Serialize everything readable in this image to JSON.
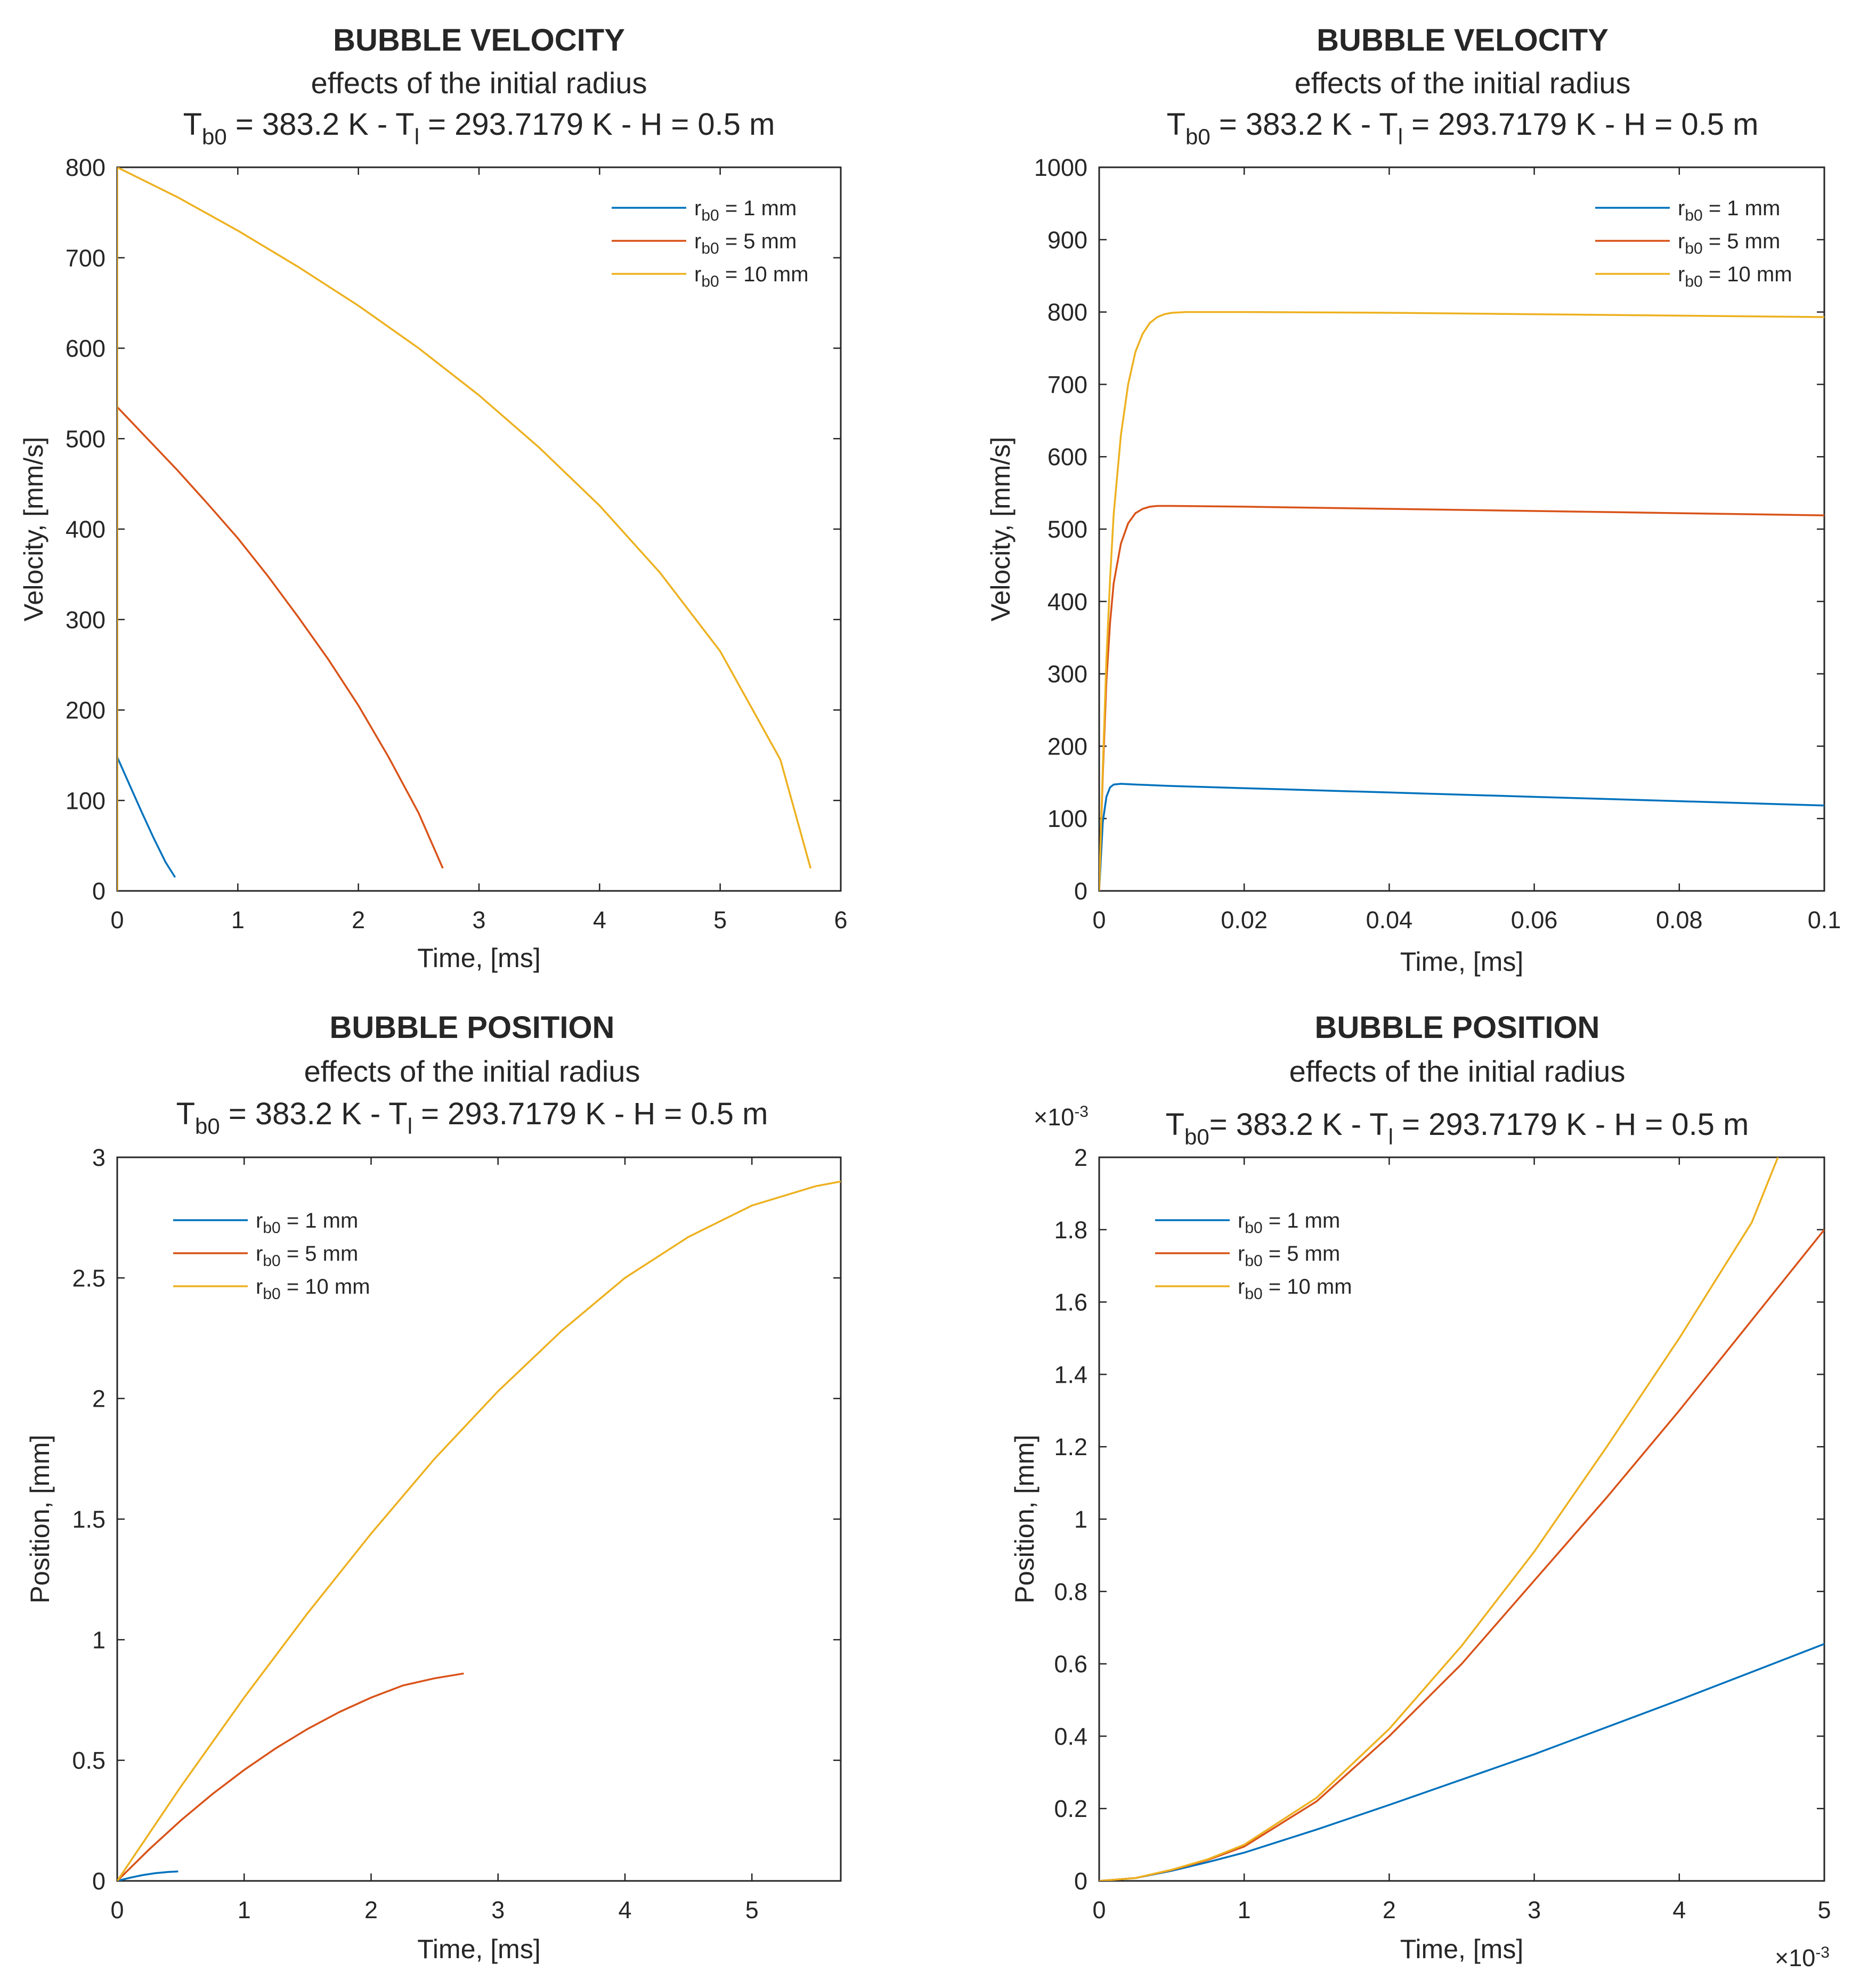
{
  "colors": {
    "series": [
      "#0072BD",
      "#D95319",
      "#EDB120"
    ],
    "axes": "#262626",
    "background": "#ffffff"
  },
  "chart_data": [
    {
      "type": "line",
      "title": "BUBBLE VELOCITY",
      "subtitle": "effects of the initial radius",
      "params": {
        "Tb": "T",
        "Tb_sub": "b0",
        "Tb_value": " = 383.2 K - T",
        "Tl_sub": "l",
        "rest": " = 293.7179 K - H = 0.5 m"
      },
      "xlabel": "Time, [ms]",
      "ylabel": "Velocity, [mm/s]",
      "xlim": [
        0,
        6
      ],
      "ylim": [
        0,
        800
      ],
      "xticks": [
        0,
        1,
        2,
        3,
        4,
        5,
        6
      ],
      "yticks": [
        0,
        100,
        200,
        300,
        400,
        500,
        600,
        700,
        800
      ],
      "xtick_labels": [
        "0",
        "1",
        "2",
        "3",
        "4",
        "5",
        "6"
      ],
      "ytick_labels": [
        "0",
        "100",
        "200",
        "300",
        "400",
        "500",
        "600",
        "700",
        "800"
      ],
      "legend_position": "top-right",
      "series": [
        {
          "name": "r_b0 = 1 mm",
          "x": [
            0,
            0,
            0.1,
            0.2,
            0.3,
            0.4,
            0.48
          ],
          "y": [
            0,
            148,
            118,
            88,
            59,
            32,
            15
          ]
        },
        {
          "name": "r_b0 = 5 mm",
          "x": [
            0,
            0,
            0.25,
            0.5,
            0.75,
            1.0,
            1.25,
            1.5,
            1.75,
            2.0,
            2.25,
            2.5,
            2.7
          ],
          "y": [
            0,
            535,
            500,
            465,
            428,
            390,
            348,
            303,
            256,
            205,
            148,
            86,
            25
          ]
        },
        {
          "name": "r_b0 = 10 mm",
          "x": [
            0,
            0,
            0.5,
            1.0,
            1.5,
            2.0,
            2.5,
            3.0,
            3.5,
            4.0,
            4.5,
            5.0,
            5.5,
            5.75
          ],
          "y": [
            0,
            800,
            767,
            730,
            690,
            647,
            600,
            548,
            490,
            426,
            352,
            265,
            145,
            25
          ]
        }
      ]
    },
    {
      "type": "line",
      "title": "BUBBLE VELOCITY",
      "subtitle": "effects of the initial radius",
      "params": {
        "Tb": "T",
        "Tb_sub": "b0",
        "Tb_value": " = 383.2 K - T",
        "Tl_sub": "l",
        "rest": " = 293.7179 K - H = 0.5 m"
      },
      "xlabel": "Time, [ms]",
      "ylabel": "Velocity, [mm/s]",
      "xlim": [
        0,
        0.1
      ],
      "ylim": [
        0,
        1000
      ],
      "xticks": [
        0,
        0.02,
        0.04,
        0.06,
        0.08,
        0.1
      ],
      "yticks": [
        0,
        100,
        200,
        300,
        400,
        500,
        600,
        700,
        800,
        900,
        1000
      ],
      "xtick_labels": [
        "0",
        "0.02",
        "0.04",
        "0.06",
        "0.08",
        "0.1"
      ],
      "ytick_labels": [
        "0",
        "100",
        "200",
        "300",
        "400",
        "500",
        "600",
        "700",
        "800",
        "900",
        "1000"
      ],
      "legend_position": "top-right",
      "series": [
        {
          "name": "r_b0 = 1 mm",
          "x": [
            0,
            0.0005,
            0.001,
            0.0015,
            0.002,
            0.003,
            0.005,
            0.01,
            0.02,
            0.04,
            0.06,
            0.08,
            0.1
          ],
          "y": [
            0,
            95,
            130,
            143,
            147,
            148,
            147,
            145,
            142,
            136,
            130,
            124,
            118
          ]
        },
        {
          "name": "r_b0 = 5 mm",
          "x": [
            0,
            0.0005,
            0.001,
            0.0015,
            0.002,
            0.003,
            0.004,
            0.005,
            0.006,
            0.007,
            0.008,
            0.01,
            0.02,
            0.04,
            0.06,
            0.08,
            0.1
          ],
          "y": [
            0,
            160,
            290,
            370,
            425,
            480,
            508,
            522,
            528,
            531,
            532,
            532,
            531,
            528,
            525,
            522,
            519
          ]
        },
        {
          "name": "r_b0 = 10 mm",
          "x": [
            0,
            0.0005,
            0.001,
            0.0015,
            0.002,
            0.003,
            0.004,
            0.005,
            0.006,
            0.007,
            0.008,
            0.009,
            0.01,
            0.012,
            0.02,
            0.04,
            0.06,
            0.08,
            0.1
          ],
          "y": [
            0,
            170,
            320,
            430,
            520,
            630,
            700,
            745,
            770,
            785,
            793,
            797,
            799,
            800,
            800,
            799,
            797,
            795,
            793
          ]
        }
      ]
    },
    {
      "type": "line",
      "title": "BUBBLE POSITION",
      "subtitle": "effects of the initial radius",
      "params": {
        "Tb": "T",
        "Tb_sub": "b0",
        "Tb_value": " = 383.2 K - T",
        "Tl_sub": "l",
        "rest": " = 293.7179 K - H = 0.5 m"
      },
      "xlabel": "Time, [ms]",
      "ylabel": "Position, [mm]",
      "xlim": [
        0,
        5.7
      ],
      "ylim": [
        0,
        3
      ],
      "xticks": [
        0,
        1,
        2,
        3,
        4,
        5
      ],
      "yticks": [
        0,
        0.5,
        1,
        1.5,
        2,
        2.5,
        3
      ],
      "xtick_labels": [
        "0",
        "1",
        "2",
        "3",
        "4",
        "5"
      ],
      "ytick_labels": [
        "0",
        "0.5",
        "1",
        "1.5",
        "2",
        "2.5",
        "3"
      ],
      "legend_position": "top-left",
      "series": [
        {
          "name": "r_b0 = 1 mm",
          "x": [
            0,
            0.1,
            0.2,
            0.3,
            0.4,
            0.48
          ],
          "y": [
            0,
            0.013,
            0.024,
            0.032,
            0.037,
            0.039
          ]
        },
        {
          "name": "r_b0 = 5 mm",
          "x": [
            0,
            0.25,
            0.5,
            0.75,
            1.0,
            1.25,
            1.5,
            1.75,
            2.0,
            2.25,
            2.5,
            2.73
          ],
          "y": [
            0,
            0.13,
            0.25,
            0.36,
            0.46,
            0.55,
            0.63,
            0.7,
            0.76,
            0.81,
            0.84,
            0.86
          ]
        },
        {
          "name": "r_b0 = 10 mm",
          "x": [
            0,
            0.5,
            1.0,
            1.5,
            2.0,
            2.5,
            3.0,
            3.5,
            4.0,
            4.5,
            5.0,
            5.5,
            5.7
          ],
          "y": [
            0,
            0.39,
            0.76,
            1.11,
            1.44,
            1.75,
            2.03,
            2.28,
            2.5,
            2.67,
            2.8,
            2.88,
            2.9
          ]
        }
      ]
    },
    {
      "type": "line",
      "title": "BUBBLE POSITION",
      "subtitle": "effects of the initial radius",
      "params": {
        "Tb": "T",
        "Tb_sub": "b0",
        "Tb_value": "= 383.2 K - T",
        "Tl_sub": "l",
        "rest": " = 293.7179 K - H = 0.5 m"
      },
      "xlabel": "Time, [ms]",
      "ylabel": "Position, [mm]",
      "x_exponent": {
        "base": "×10",
        "exp": "-3"
      },
      "y_exponent": {
        "base": "×10",
        "exp": "-3"
      },
      "xlim": [
        0,
        5
      ],
      "ylim": [
        0,
        2
      ],
      "xticks": [
        0,
        1,
        2,
        3,
        4,
        5
      ],
      "yticks": [
        0,
        0.2,
        0.4,
        0.6,
        0.8,
        1,
        1.2,
        1.4,
        1.6,
        1.8,
        2
      ],
      "xtick_labels": [
        "0",
        "1",
        "2",
        "3",
        "4",
        "5"
      ],
      "ytick_labels": [
        "0",
        "0.2",
        "0.4",
        "0.6",
        "0.8",
        "1",
        "1.2",
        "1.4",
        "1.6",
        "1.8",
        "2"
      ],
      "legend_position": "top-left",
      "series": [
        {
          "name": "r_b0 = 1 mm",
          "x": [
            0,
            0.25,
            0.5,
            0.75,
            1.0,
            1.5,
            2.0,
            3.0,
            4.0,
            5.0
          ],
          "y": [
            0,
            0.008,
            0.028,
            0.052,
            0.078,
            0.142,
            0.21,
            0.35,
            0.5,
            0.655
          ]
        },
        {
          "name": "r_b0 = 5 mm",
          "x": [
            0,
            0.25,
            0.5,
            0.75,
            1.0,
            1.5,
            2.0,
            2.5,
            3.0,
            3.5,
            4.0,
            4.5,
            5.0
          ],
          "y": [
            0,
            0.008,
            0.03,
            0.058,
            0.095,
            0.22,
            0.4,
            0.6,
            0.83,
            1.06,
            1.3,
            1.55,
            1.8
          ]
        },
        {
          "name": "r_b0 = 10 mm",
          "x": [
            0,
            0.25,
            0.5,
            0.75,
            1.0,
            1.5,
            2.0,
            2.5,
            3.0,
            3.5,
            4.0,
            4.5,
            4.68
          ],
          "y": [
            0,
            0.008,
            0.031,
            0.06,
            0.1,
            0.23,
            0.42,
            0.65,
            0.91,
            1.2,
            1.5,
            1.82,
            2.0
          ]
        }
      ]
    }
  ]
}
